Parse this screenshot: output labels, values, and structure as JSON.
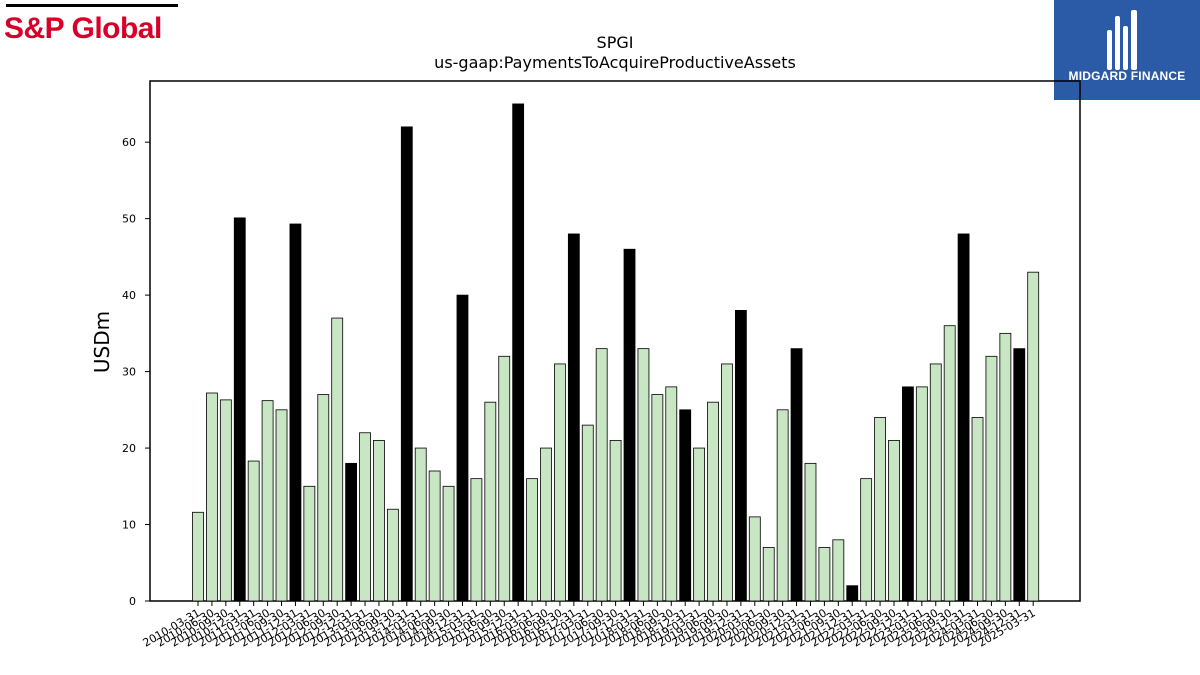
{
  "header": {
    "company_logo_text": "S&P Global",
    "brand_logo_text": "MIDGARD FINANCE"
  },
  "colors": {
    "sp_red": "#d6002a",
    "brand_blue": "#2b5aa6",
    "bar_light": "#c8e6c4",
    "bar_dark": "#000000"
  },
  "chart_data": {
    "type": "bar",
    "title": "SPGI",
    "subtitle": "us-gaap:PaymentsToAcquireProductiveAssets",
    "xlabel": "",
    "ylabel": "USDm",
    "ylim": [
      0,
      68
    ],
    "yticks": [
      0,
      10,
      20,
      30,
      40,
      50,
      60
    ],
    "grid": false,
    "categories": [
      "2010-03-31",
      "2010-06-30",
      "2010-09-30",
      "2010-12-31",
      "2011-03-31",
      "2011-06-30",
      "2011-09-30",
      "2011-12-31",
      "2012-03-31",
      "2012-06-30",
      "2012-09-30",
      "2012-12-31",
      "2013-03-31",
      "2013-06-30",
      "2013-09-30",
      "2013-12-31",
      "2014-03-31",
      "2014-06-30",
      "2014-09-30",
      "2014-12-31",
      "2015-03-31",
      "2015-06-30",
      "2015-09-30",
      "2015-12-31",
      "2016-03-31",
      "2016-06-30",
      "2016-09-30",
      "2016-12-31",
      "2017-03-31",
      "2017-06-30",
      "2017-09-30",
      "2017-12-31",
      "2018-03-31",
      "2018-06-30",
      "2018-09-30",
      "2018-12-31",
      "2019-03-31",
      "2019-06-30",
      "2019-09-30",
      "2019-12-31",
      "2020-03-31",
      "2020-06-30",
      "2020-09-30",
      "2020-12-31",
      "2021-03-31",
      "2021-06-30",
      "2021-09-30",
      "2021-12-31",
      "2022-03-31",
      "2022-06-30",
      "2022-09-30",
      "2022-12-31",
      "2023-03-31",
      "2023-06-30",
      "2023-09-30",
      "2023-12-31",
      "2024-03-31",
      "2024-06-30",
      "2024-09-30",
      "2024-12-31",
      "2025-03-31"
    ],
    "values": [
      11.6,
      27.2,
      26.3,
      50.1,
      18.3,
      26.2,
      25.0,
      49.3,
      15.0,
      27.0,
      37.0,
      18.0,
      22.0,
      21.0,
      12.0,
      62.0,
      20.0,
      17.0,
      15.0,
      40.0,
      16.0,
      26.0,
      32.0,
      65.0,
      16.0,
      20.0,
      31.0,
      48.0,
      23.0,
      33.0,
      21.0,
      46.0,
      33.0,
      27.0,
      28.0,
      25.0,
      20.0,
      26.0,
      31.0,
      38.0,
      11.0,
      7.0,
      25.0,
      33.0,
      18.0,
      7.0,
      8.0,
      2.0,
      16.0,
      24.0,
      21.0,
      28.0,
      28.0,
      31.0,
      36.0,
      48.0,
      24.0,
      32.0,
      35.0,
      33.0,
      43.0
    ],
    "legend": "none"
  }
}
